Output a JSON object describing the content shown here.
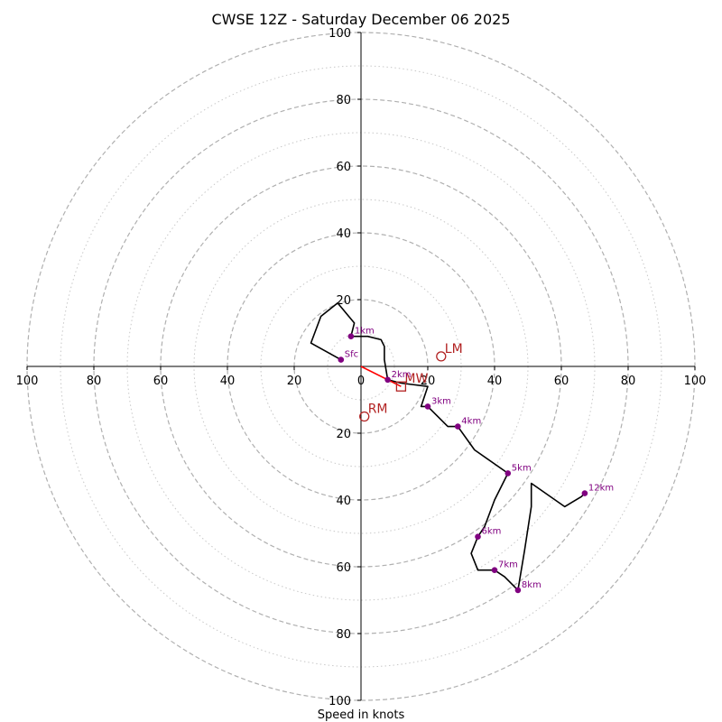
{
  "chart_data": {
    "type": "hodograph",
    "title": "CWSE 12Z - Saturday December 06 2025",
    "xlabel": "Speed in knots",
    "units": "knots",
    "max_speed": 100,
    "ring_values": [
      10,
      20,
      30,
      40,
      50,
      60,
      70,
      80,
      90,
      100
    ],
    "x_tick_labels": [
      "100",
      "80",
      "60",
      "40",
      "20",
      "0",
      "20",
      "40",
      "60",
      "80",
      "100"
    ],
    "x_tick_values": [
      -100,
      -80,
      -60,
      -40,
      -20,
      0,
      20,
      40,
      60,
      80,
      100
    ],
    "y_tick_labels": [
      "100",
      "80",
      "60",
      "40",
      "20",
      "20",
      "40",
      "60",
      "80",
      "100"
    ],
    "y_tick_values": [
      100,
      80,
      60,
      40,
      20,
      -20,
      -40,
      -60,
      -80,
      -100
    ],
    "hodograph_trace": [
      [
        -6,
        2
      ],
      [
        -15,
        7
      ],
      [
        -12,
        15
      ],
      [
        -7,
        19
      ],
      [
        -2,
        13
      ],
      [
        -3,
        9
      ],
      [
        2,
        9
      ],
      [
        6,
        8
      ],
      [
        7,
        6
      ],
      [
        7,
        2
      ],
      [
        8,
        -4
      ],
      [
        12,
        -5
      ],
      [
        20,
        -6
      ],
      [
        18,
        -12
      ],
      [
        20,
        -12
      ],
      [
        26,
        -18
      ],
      [
        29,
        -18
      ],
      [
        34,
        -25
      ],
      [
        44,
        -32
      ],
      [
        40,
        -40
      ],
      [
        37,
        -48
      ],
      [
        35,
        -51
      ],
      [
        33,
        -56
      ],
      [
        35,
        -61
      ],
      [
        40,
        -61
      ],
      [
        43,
        -63
      ],
      [
        47,
        -67
      ],
      [
        49,
        -55
      ],
      [
        51,
        -42
      ],
      [
        51,
        -35
      ],
      [
        61,
        -42
      ],
      [
        66,
        -39
      ],
      [
        67,
        -38
      ]
    ],
    "height_markers": [
      {
        "label": "Sfc",
        "u": -6,
        "v": 2
      },
      {
        "label": "1km",
        "u": -3,
        "v": 9
      },
      {
        "label": "2km",
        "u": 8,
        "v": -4
      },
      {
        "label": "3km",
        "u": 20,
        "v": -12
      },
      {
        "label": "4km",
        "u": 29,
        "v": -18
      },
      {
        "label": "5km",
        "u": 44,
        "v": -32
      },
      {
        "label": "6km",
        "u": 35,
        "v": -51
      },
      {
        "label": "7km",
        "u": 40,
        "v": -61
      },
      {
        "label": "8km",
        "u": 47,
        "v": -67
      },
      {
        "label": "12km",
        "u": 67,
        "v": -38
      }
    ],
    "motion_markers": [
      {
        "label": "LM",
        "u": 24,
        "v": 3,
        "shape": "circle"
      },
      {
        "label": "RM",
        "u": 1,
        "v": -15,
        "shape": "circle"
      },
      {
        "label": "MW",
        "u": 12,
        "v": -6,
        "shape": "square"
      }
    ],
    "shear_vector": {
      "from": [
        0,
        0
      ],
      "to": [
        12,
        -6
      ]
    },
    "colors": {
      "trace": "#000000",
      "height_marker": "#800080",
      "motion_marker": "#b22222",
      "shear_vector": "#ff0000",
      "ring_major": "#b0b0b0",
      "ring_minor": "#c8c8c8"
    }
  }
}
